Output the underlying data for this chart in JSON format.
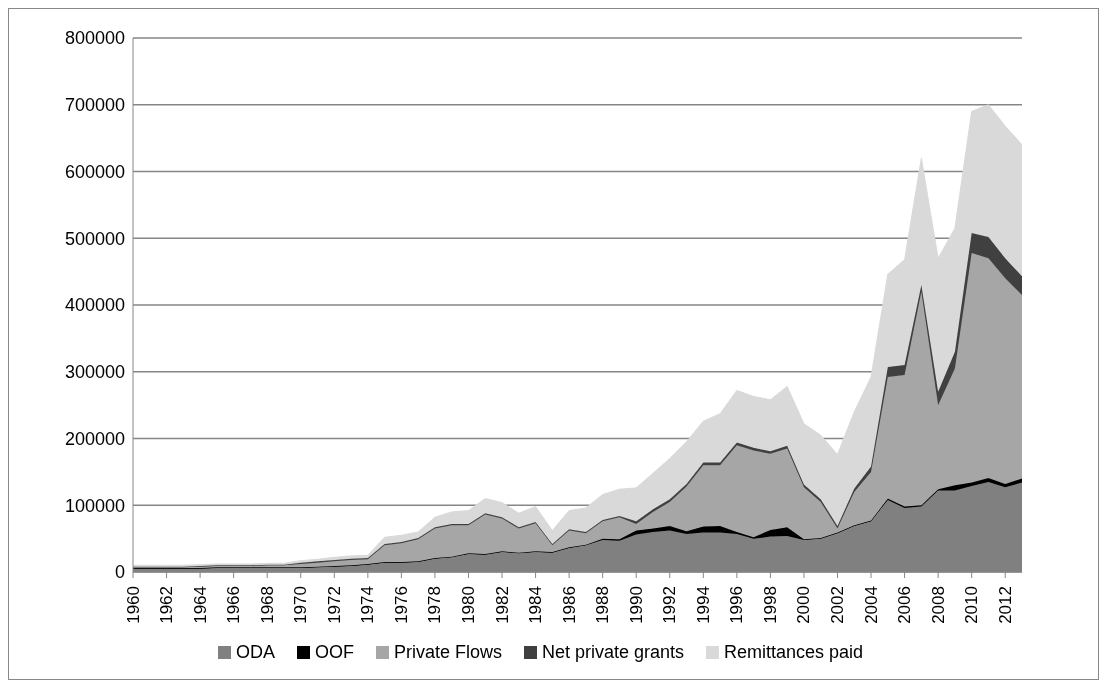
{
  "chart_data": {
    "type": "area",
    "stacked": true,
    "x": [
      1960,
      1961,
      1962,
      1963,
      1964,
      1965,
      1966,
      1967,
      1968,
      1969,
      1970,
      1971,
      1972,
      1973,
      1974,
      1975,
      1976,
      1977,
      1978,
      1979,
      1980,
      1981,
      1982,
      1983,
      1984,
      1985,
      1986,
      1987,
      1988,
      1989,
      1990,
      1991,
      1992,
      1993,
      1994,
      1995,
      1996,
      1997,
      1998,
      1999,
      2000,
      2001,
      2002,
      2003,
      2004,
      2005,
      2006,
      2007,
      2008,
      2009,
      2010,
      2011,
      2012,
      2013
    ],
    "series": [
      {
        "name": "ODA",
        "color": "#808080",
        "values": [
          5000,
          5000,
          5000,
          5000,
          5000,
          6000,
          6000,
          6000,
          6000,
          6000,
          6000,
          7000,
          8000,
          9000,
          11000,
          14000,
          14000,
          15000,
          20000,
          22000,
          27000,
          26000,
          30000,
          28000,
          30000,
          29000,
          36000,
          40000,
          48000,
          47000,
          56000,
          60000,
          62000,
          57000,
          59000,
          59000,
          57000,
          50000,
          53000,
          54000,
          48000,
          50000,
          58000,
          69000,
          76000,
          108000,
          96000,
          98000,
          122000,
          122000,
          129000,
          135000,
          127000,
          134000
        ]
      },
      {
        "name": "OOF",
        "color": "#000000",
        "values": [
          1000,
          1000,
          1000,
          1000,
          1000,
          1000,
          1000,
          1000,
          1000,
          1000,
          1000,
          1000,
          1000,
          1000,
          1000,
          1000,
          1000,
          1000,
          1000,
          1000,
          1000,
          1000,
          1000,
          1000,
          1000,
          1000,
          1000,
          1000,
          2000,
          2000,
          6000,
          5000,
          7000,
          4000,
          9000,
          10000,
          3000,
          2000,
          10000,
          13000,
          1000,
          1000,
          1000,
          1000,
          1000,
          2000,
          2000,
          2000,
          2000,
          8000,
          5000,
          6000,
          5000,
          6000
        ]
      },
      {
        "name": "Private Flows",
        "color": "#a6a6a6",
        "values": [
          1000,
          1000,
          1000,
          1000,
          2000,
          2000,
          2000,
          2000,
          3000,
          3000,
          5000,
          6000,
          7000,
          8000,
          7000,
          25000,
          28000,
          33000,
          44000,
          47000,
          42000,
          59000,
          49000,
          36000,
          42000,
          10000,
          25000,
          17000,
          26000,
          33000,
          10000,
          25000,
          36000,
          67000,
          92000,
          91000,
          130000,
          130000,
          114000,
          118000,
          78000,
          54000,
          6000,
          50000,
          73000,
          182000,
          197000,
          320000,
          126000,
          175000,
          344000,
          329000,
          308000,
          275000
        ]
      },
      {
        "name": "Net private grants",
        "color": "#404040",
        "values": [
          1000,
          1000,
          1000,
          1000,
          1000,
          1000,
          1000,
          1000,
          1000,
          1000,
          2000,
          2000,
          2000,
          2000,
          2000,
          2000,
          2000,
          2000,
          2000,
          2000,
          2000,
          2000,
          2000,
          2000,
          2000,
          2000,
          2000,
          2000,
          2000,
          2000,
          4000,
          4000,
          4000,
          4000,
          4000,
          4000,
          4000,
          4000,
          4000,
          4000,
          4000,
          4000,
          4000,
          5000,
          8000,
          15000,
          15000,
          10000,
          20000,
          25000,
          30000,
          32000,
          30000,
          28000
        ]
      },
      {
        "name": "Remittances paid",
        "color": "#d9d9d9",
        "values": [
          2000,
          2000,
          2000,
          2000,
          2000,
          2000,
          2000,
          2000,
          2000,
          2000,
          3000,
          3000,
          4000,
          4000,
          4000,
          10000,
          10000,
          9000,
          15000,
          18000,
          20000,
          22000,
          22000,
          21000,
          23000,
          20000,
          28000,
          36000,
          38000,
          40000,
          50000,
          54000,
          61000,
          63000,
          62000,
          73000,
          78000,
          77000,
          77000,
          89000,
          91000,
          96000,
          107000,
          115000,
          134000,
          139000,
          158000,
          190000,
          200000,
          185000,
          182000,
          198000,
          198000,
          197000
        ]
      }
    ],
    "xlim": [
      1960,
      2013
    ],
    "xticks": [
      1960,
      1962,
      1964,
      1966,
      1968,
      1970,
      1972,
      1974,
      1976,
      1978,
      1980,
      1982,
      1984,
      1986,
      1988,
      1990,
      1992,
      1994,
      1996,
      1998,
      2000,
      2002,
      2004,
      2006,
      2008,
      2010,
      2012
    ],
    "ylim": [
      0,
      800000
    ],
    "yticks": [
      0,
      100000,
      200000,
      300000,
      400000,
      500000,
      600000,
      700000,
      800000
    ],
    "grid": "y",
    "legend": "bottom"
  }
}
